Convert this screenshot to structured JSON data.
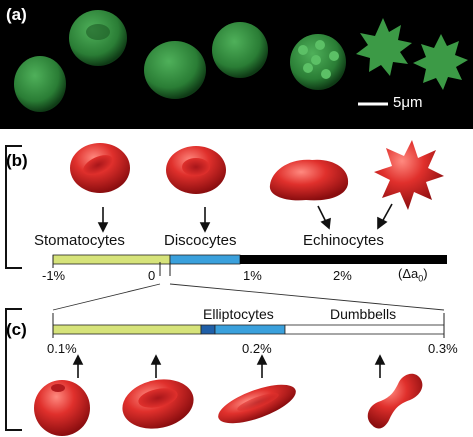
{
  "panels": {
    "a": {
      "label": "(a)",
      "scale_bar": "5μm",
      "colors": {
        "cell": "#2f8a3e",
        "background": "#000000"
      }
    },
    "b": {
      "label": "(b)",
      "categories": [
        "Stomatocytes",
        "Discocytes",
        "Echinocytes"
      ],
      "ticks": [
        "-1%",
        "0",
        "1%",
        "2%"
      ],
      "axis_symbol": "(Δa",
      "axis_symbol_sub": "0",
      "axis_symbol_end": ")",
      "colors": {
        "stomato": "#d6e37a",
        "disco": "#3aa0dc",
        "echino": "#000000"
      }
    },
    "c": {
      "label": "(c)",
      "categories": [
        "Elliptocytes",
        "Dumbbells"
      ],
      "ticks": [
        "0.1%",
        "0.2%",
        "0.3%"
      ],
      "colors": {
        "stomato": "#d6e37a",
        "disco": "#3aa0dc",
        "dark": "#1f5fa8",
        "dumbbell": "#ffffff"
      }
    }
  },
  "colors": {
    "cell_red": "#d8282a"
  }
}
